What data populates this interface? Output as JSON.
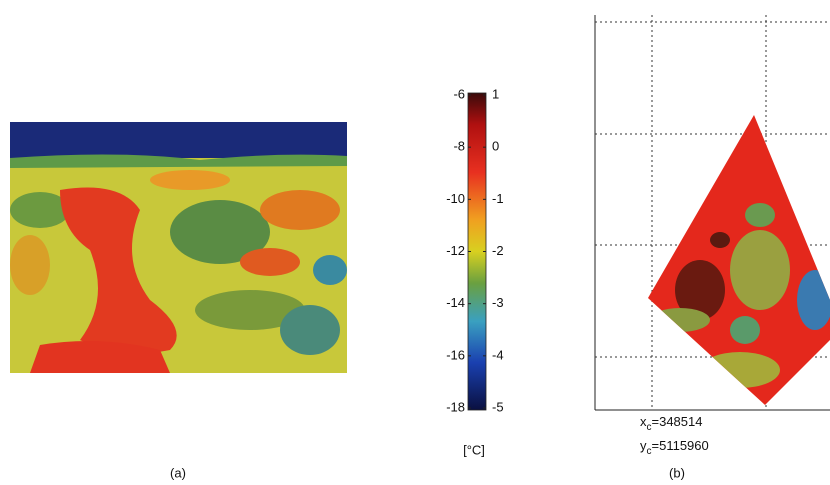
{
  "panel_a": {
    "caption": "(a)"
  },
  "colorbar": {
    "left_ticks": [
      -6,
      -8,
      -10,
      -12,
      -14,
      -16,
      -18
    ],
    "right_ticks": [
      1,
      0,
      -1,
      -2,
      -3,
      -4,
      -5
    ],
    "unit": "[°C]"
  },
  "panel_b": {
    "caption": "(b)",
    "xc": {
      "symbol": "x",
      "subscript": "c",
      "value": "=348514"
    },
    "yc": {
      "symbol": "y",
      "subscript": "c",
      "value": "=5115960"
    }
  }
}
